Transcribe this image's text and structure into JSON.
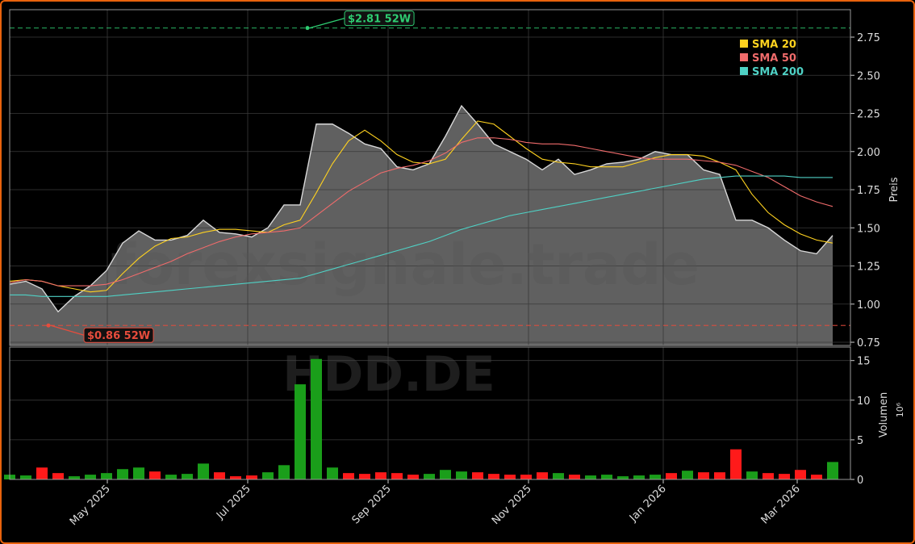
{
  "chart_data": [
    {
      "type": "line",
      "ylabel": "Preis",
      "watermark": "forexsignale.trade",
      "x": [
        0,
        1,
        2,
        3,
        4,
        5,
        6,
        7,
        8,
        9,
        10,
        11,
        12,
        13,
        14,
        15,
        16,
        17,
        18,
        19,
        20,
        21,
        22,
        23,
        24,
        25,
        26,
        27,
        28,
        29,
        30,
        31,
        32,
        33,
        34,
        35,
        36,
        37,
        38,
        39,
        40,
        41,
        42,
        43,
        44,
        45,
        46,
        47,
        48,
        49,
        50,
        51
      ],
      "xlim": [
        0,
        52.1
      ],
      "xticks": [
        {
          "value": 6.05,
          "label": "May 2025"
        },
        {
          "value": 14.75,
          "label": "Jul 2025"
        },
        {
          "value": 23.45,
          "label": "Sep 2025"
        },
        {
          "value": 32.15,
          "label": "Nov 2025"
        },
        {
          "value": 40.5,
          "label": "Jan 2026"
        },
        {
          "value": 48.8,
          "label": "Mar 2026"
        }
      ],
      "ylim": [
        0.729,
        2.93
      ],
      "yticks": [
        0.75,
        {
          "value": 1,
          "label": "1.00"
        },
        1.25,
        {
          "value": 1.5,
          "label": "1.50"
        },
        1.75,
        {
          "value": 2,
          "label": "2.00"
        },
        2.25,
        {
          "value": 2.5,
          "label": "2.50"
        },
        2.75
      ],
      "grid": true,
      "legend": "upper right",
      "area_color": "#606060",
      "series": [
        {
          "color": "#d8d8d8",
          "values": [
            1.13,
            1.15,
            1.1,
            0.95,
            1.05,
            1.12,
            1.22,
            1.4,
            1.48,
            1.42,
            1.42,
            1.45,
            1.55,
            1.47,
            1.46,
            1.44,
            1.5,
            1.65,
            1.65,
            2.18,
            2.18,
            2.12,
            2.05,
            2.02,
            1.9,
            1.88,
            1.92,
            2.1,
            2.3,
            2.18,
            2.05,
            2.0,
            1.95,
            1.88,
            1.95,
            1.85,
            1.88,
            1.92,
            1.93,
            1.95,
            2.0,
            1.98,
            1.98,
            1.88,
            1.85,
            1.55,
            1.55,
            1.5,
            1.42,
            1.35,
            1.33,
            1.45
          ]
        },
        {
          "name": "SMA 20",
          "color": "#ffd21f",
          "values": [
            1.15,
            1.16,
            1.15,
            1.12,
            1.1,
            1.08,
            1.09,
            1.2,
            1.3,
            1.38,
            1.43,
            1.44,
            1.47,
            1.49,
            1.49,
            1.48,
            1.47,
            1.52,
            1.55,
            1.73,
            1.92,
            2.07,
            2.14,
            2.07,
            1.98,
            1.93,
            1.92,
            1.95,
            2.08,
            2.2,
            2.18,
            2.1,
            2.02,
            1.95,
            1.93,
            1.92,
            1.9,
            1.9,
            1.9,
            1.93,
            1.96,
            1.98,
            1.98,
            1.97,
            1.93,
            1.88,
            1.72,
            1.6,
            1.52,
            1.46,
            1.42,
            1.4
          ]
        },
        {
          "name": "SMA 50",
          "color": "#f06b6b",
          "values": [
            1.14,
            1.16,
            1.15,
            1.12,
            1.12,
            1.12,
            1.13,
            1.16,
            1.2,
            1.24,
            1.28,
            1.33,
            1.37,
            1.41,
            1.44,
            1.46,
            1.47,
            1.48,
            1.5,
            1.58,
            1.66,
            1.74,
            1.8,
            1.86,
            1.89,
            1.91,
            1.94,
            1.99,
            2.06,
            2.09,
            2.09,
            2.08,
            2.06,
            2.05,
            2.05,
            2.04,
            2.02,
            2.0,
            1.98,
            1.96,
            1.95,
            1.95,
            1.95,
            1.94,
            1.93,
            1.91,
            1.87,
            1.83,
            1.77,
            1.71,
            1.67,
            1.64
          ]
        },
        {
          "name": "SMA 200",
          "color": "#4fd1c5",
          "values": [
            1.06,
            1.06,
            1.05,
            1.05,
            1.05,
            1.05,
            1.05,
            1.06,
            1.07,
            1.08,
            1.09,
            1.1,
            1.11,
            1.12,
            1.13,
            1.14,
            1.15,
            1.16,
            1.17,
            1.2,
            1.23,
            1.26,
            1.29,
            1.32,
            1.35,
            1.38,
            1.41,
            1.45,
            1.49,
            1.52,
            1.55,
            1.58,
            1.6,
            1.62,
            1.64,
            1.66,
            1.68,
            1.7,
            1.72,
            1.74,
            1.76,
            1.78,
            1.8,
            1.82,
            1.83,
            1.84,
            1.84,
            1.84,
            1.84,
            1.83,
            1.83,
            1.83
          ]
        }
      ],
      "annotations": [
        {
          "text": "$2.81 52W",
          "value": 2.81,
          "x": 18.45,
          "color": "#2ecc71"
        },
        {
          "text": "$0.86 52W",
          "value": 0.86,
          "x": 2.4,
          "color": "#e74c3c"
        }
      ]
    },
    {
      "type": "bar",
      "ylabel": "Volumen",
      "yunit": "10⁶",
      "watermark": "HDD.DE",
      "x": [
        0,
        1,
        2,
        3,
        4,
        5,
        6,
        7,
        8,
        9,
        10,
        11,
        12,
        13,
        14,
        15,
        16,
        17,
        18,
        19,
        20,
        21,
        22,
        23,
        24,
        25,
        26,
        27,
        28,
        29,
        30,
        31,
        32,
        33,
        34,
        35,
        36,
        37,
        38,
        39,
        40,
        41,
        42,
        43,
        44,
        45,
        46,
        47,
        48,
        49,
        50,
        51
      ],
      "ylim": [
        0,
        16.7
      ],
      "yticks": [
        0,
        5,
        10,
        15
      ],
      "up_color": "#1a9e1a",
      "down_color": "#ff1a1a",
      "values": [
        0.6,
        0.5,
        1.5,
        0.8,
        0.4,
        0.6,
        0.8,
        1.3,
        1.5,
        1.0,
        0.6,
        0.7,
        2.0,
        0.9,
        0.4,
        0.5,
        0.9,
        1.8,
        12.0,
        15.2,
        1.5,
        0.8,
        0.7,
        0.9,
        0.8,
        0.6,
        0.7,
        1.2,
        1.0,
        0.9,
        0.7,
        0.6,
        0.6,
        0.9,
        0.8,
        0.6,
        0.5,
        0.6,
        0.4,
        0.5,
        0.6,
        0.8,
        1.1,
        0.9,
        0.9,
        3.8,
        1.0,
        0.8,
        0.7,
        1.2,
        0.6,
        2.2
      ]
    }
  ]
}
